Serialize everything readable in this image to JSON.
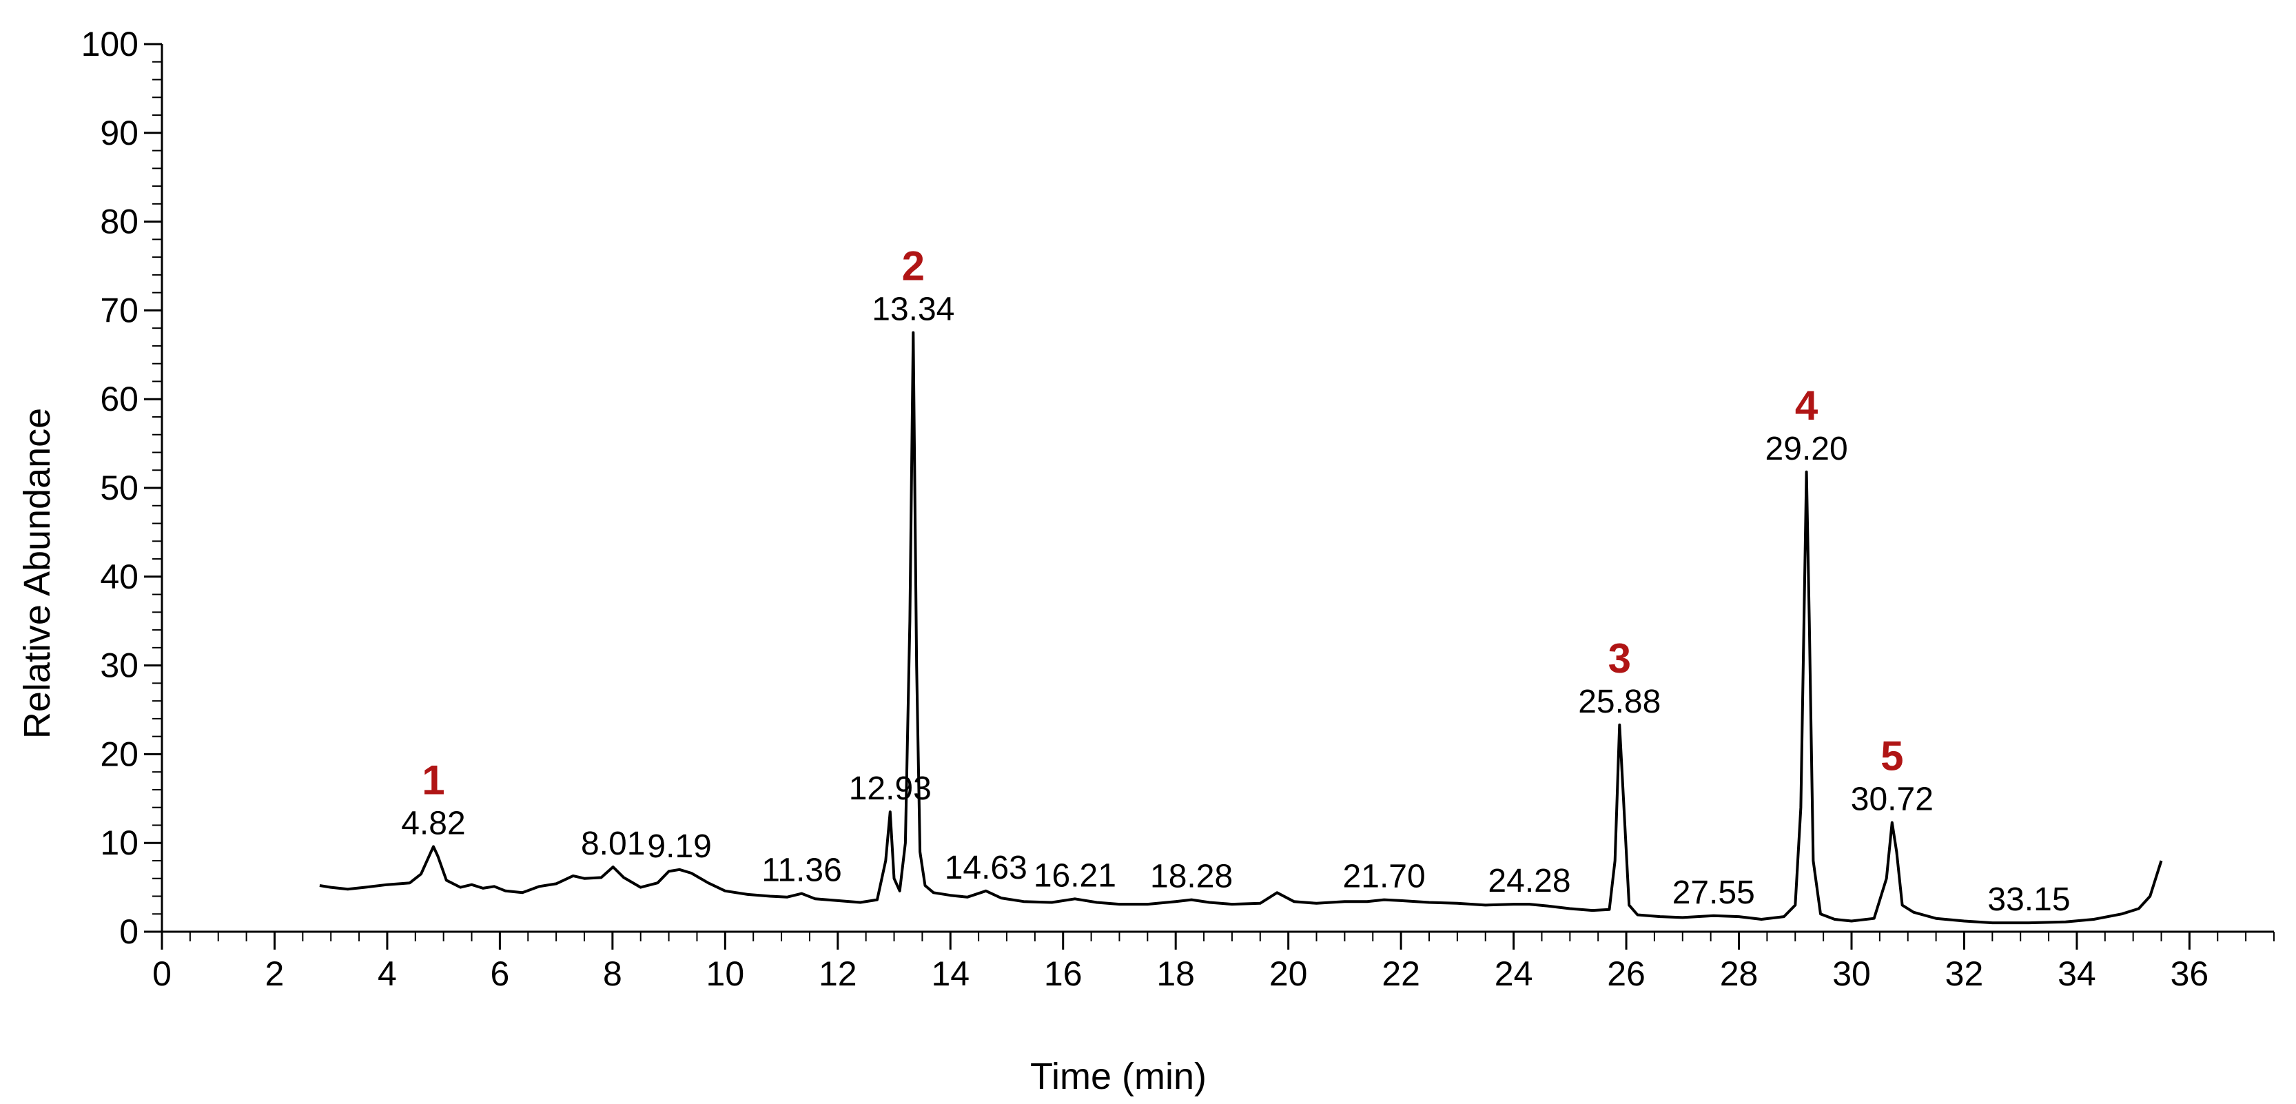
{
  "chart_data": {
    "type": "line",
    "title": "",
    "xlabel": "Time (min)",
    "ylabel": "Relative  Abundance",
    "xlim": [
      0,
      37.5
    ],
    "ylim": [
      0,
      100
    ],
    "x_ticks": [
      0,
      2,
      4,
      6,
      8,
      10,
      12,
      14,
      16,
      18,
      20,
      22,
      24,
      26,
      28,
      30,
      32,
      34,
      36
    ],
    "x_tick_labels": [
      "0",
      "2",
      "4",
      "6",
      "8",
      "10",
      "12",
      "14",
      "16",
      "18",
      "20",
      "22",
      "24",
      "26",
      "28",
      "30",
      "32",
      "34",
      "36"
    ],
    "y_ticks": [
      0,
      10,
      20,
      30,
      40,
      50,
      60,
      70,
      80,
      90,
      100
    ],
    "y_tick_labels": [
      "0",
      "10",
      "20",
      "30",
      "40",
      "50",
      "60",
      "70",
      "80",
      "90",
      "100"
    ],
    "grid": false,
    "colors": {
      "line": "#000000",
      "peak_number": "#b01515"
    },
    "peak_labels": [
      {
        "time": 4.82,
        "label": "4.82",
        "number": "1"
      },
      {
        "time": 8.01,
        "label": "8.01"
      },
      {
        "time": 9.19,
        "label": "9.19"
      },
      {
        "time": 11.36,
        "label": "11.36"
      },
      {
        "time": 12.93,
        "label": "12.93"
      },
      {
        "time": 13.34,
        "label": "13.34",
        "number": "2"
      },
      {
        "time": 14.63,
        "label": "14.63"
      },
      {
        "time": 16.21,
        "label": "16.21"
      },
      {
        "time": 18.28,
        "label": "18.28"
      },
      {
        "time": 21.7,
        "label": "21.70"
      },
      {
        "time": 24.28,
        "label": "24.28"
      },
      {
        "time": 25.88,
        "label": "25.88",
        "number": "3"
      },
      {
        "time": 27.55,
        "label": "27.55"
      },
      {
        "time": 29.2,
        "label": "29.20",
        "number": "4"
      },
      {
        "time": 30.72,
        "label": "30.72",
        "number": "5"
      },
      {
        "time": 33.15,
        "label": "33.15"
      }
    ],
    "series": [
      {
        "x": [
          2.8,
          3.0,
          3.3,
          3.6,
          4.0,
          4.4,
          4.6,
          4.75,
          4.82,
          4.9,
          5.05,
          5.3,
          5.5,
          5.7,
          5.9,
          6.1,
          6.4,
          6.7,
          7.0,
          7.3,
          7.5,
          7.8,
          8.01,
          8.2,
          8.5,
          8.8,
          9.0,
          9.19,
          9.4,
          9.7,
          10.0,
          10.4,
          10.8,
          11.1,
          11.36,
          11.6,
          12.0,
          12.4,
          12.7,
          12.85,
          12.93,
          13.0,
          13.1,
          13.2,
          13.28,
          13.34,
          13.4,
          13.46,
          13.55,
          13.7,
          14.0,
          14.3,
          14.63,
          14.9,
          15.3,
          15.8,
          16.21,
          16.6,
          17.0,
          17.5,
          18.0,
          18.28,
          18.6,
          19.0,
          19.5,
          19.8,
          20.1,
          20.5,
          21.0,
          21.4,
          21.7,
          22.0,
          22.5,
          23.0,
          23.5,
          24.0,
          24.28,
          24.6,
          25.0,
          25.4,
          25.7,
          25.8,
          25.88,
          25.95,
          26.05,
          26.2,
          26.6,
          27.0,
          27.55,
          28.0,
          28.4,
          28.8,
          29.0,
          29.1,
          29.2,
          29.25,
          29.32,
          29.45,
          29.7,
          30.0,
          30.4,
          30.62,
          30.72,
          30.8,
          30.9,
          31.1,
          31.5,
          32.0,
          32.5,
          33.15,
          33.8,
          34.3,
          34.8,
          35.1,
          35.3,
          35.5
        ],
        "y": [
          5.2,
          5.0,
          4.8,
          5.0,
          5.3,
          5.5,
          6.5,
          8.6,
          9.6,
          8.5,
          5.8,
          5.0,
          5.3,
          4.9,
          5.1,
          4.6,
          4.4,
          5.1,
          5.4,
          6.3,
          6.0,
          6.1,
          7.3,
          6.1,
          5.0,
          5.5,
          6.8,
          7.0,
          6.6,
          5.5,
          4.6,
          4.2,
          4.0,
          3.9,
          4.3,
          3.7,
          3.5,
          3.3,
          3.6,
          8.0,
          13.5,
          6.0,
          4.6,
          10.0,
          35.0,
          67.5,
          30.0,
          9.0,
          5.2,
          4.4,
          4.1,
          3.9,
          4.6,
          3.8,
          3.4,
          3.3,
          3.7,
          3.3,
          3.1,
          3.1,
          3.4,
          3.6,
          3.3,
          3.1,
          3.2,
          4.4,
          3.4,
          3.2,
          3.4,
          3.4,
          3.6,
          3.5,
          3.3,
          3.2,
          3.0,
          3.1,
          3.1,
          2.9,
          2.6,
          2.4,
          2.5,
          8.0,
          23.3,
          15.0,
          3.0,
          1.9,
          1.7,
          1.6,
          1.8,
          1.7,
          1.4,
          1.7,
          3.0,
          14.0,
          51.8,
          35.0,
          8.0,
          2.0,
          1.4,
          1.2,
          1.5,
          6.0,
          12.3,
          9.0,
          3.0,
          2.2,
          1.5,
          1.2,
          1.0,
          1.0,
          1.1,
          1.4,
          2.0,
          2.6,
          4.0,
          8.0
        ]
      }
    ]
  }
}
